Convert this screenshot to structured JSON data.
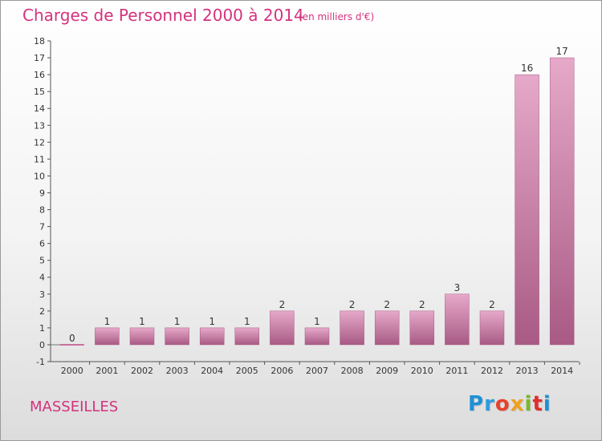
{
  "header": {
    "title": "Charges de Personnel 2000 à 2014",
    "subtitle": "(en milliers d'€)"
  },
  "footer": {
    "commune": "MASSEILLES",
    "logo_text": "Proxiti"
  },
  "colors": {
    "bar": "#c8709c",
    "bar_light": "#e6a9c9",
    "bar_dark": "#a85a84",
    "title": "#d4327e",
    "logo": [
      "#1e90d6",
      "#2e9be0",
      "#e8412c",
      "#f0a020",
      "#7ab828",
      "#e0302a",
      "#1e90d6"
    ]
  },
  "chart_data": {
    "type": "bar",
    "title": "Charges de Personnel 2000 à 2014",
    "subtitle": "(en milliers d'€)",
    "categories": [
      "2000",
      "2001",
      "2002",
      "2003",
      "2004",
      "2005",
      "2006",
      "2007",
      "2008",
      "2009",
      "2010",
      "2011",
      "2012",
      "2013",
      "2014"
    ],
    "values": [
      0,
      1,
      1,
      1,
      1,
      1,
      2,
      1,
      2,
      2,
      2,
      3,
      2,
      16,
      17
    ],
    "value_labels": [
      "0",
      "1",
      "1",
      "1",
      "1",
      "1",
      "2",
      "1",
      "2",
      "2",
      "2",
      "3",
      "2",
      "16",
      "17"
    ],
    "y_ticks": [
      "-1",
      "0",
      "1",
      "2",
      "3",
      "4",
      "5",
      "6",
      "7",
      "8",
      "9",
      "10",
      "11",
      "12",
      "13",
      "14",
      "15",
      "16",
      "17",
      "18"
    ],
    "ylim": [
      -1,
      18
    ],
    "grid": false,
    "legend": "none"
  }
}
